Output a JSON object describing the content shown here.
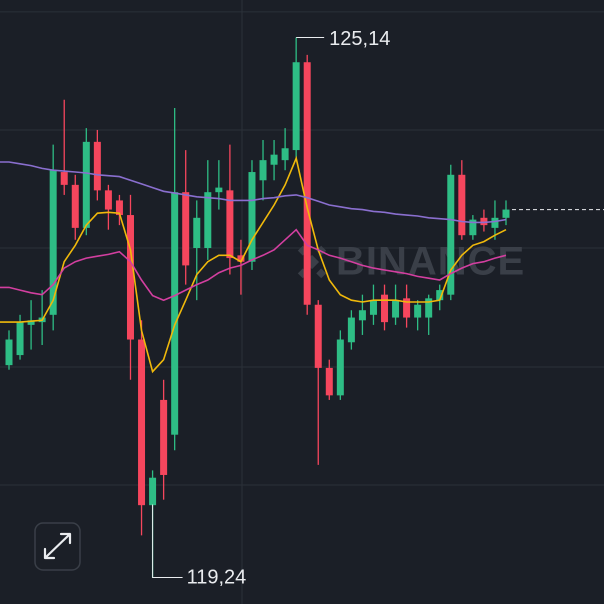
{
  "chart_data": {
    "type": "candlestick",
    "ylim": [
      118.95,
      125.55
    ],
    "grid_y": [
      125.42,
      124.13,
      122.84,
      121.54,
      120.25
    ],
    "up_color": "#2ebd85",
    "down_color": "#f6465d",
    "watermark": "BINANCE",
    "open": [
      121.56,
      121.67,
      122.0,
      122.03,
      122.11,
      123.67,
      123.53,
      123.06,
      124.0,
      123.47,
      123.36,
      123.2,
      121.84,
      120.03,
      121.18,
      120.8,
      123.45,
      122.84,
      122.84,
      123.45,
      123.47,
      122.76,
      122.69,
      123.58,
      123.75,
      123.8,
      123.91,
      124.87,
      122.22,
      121.53,
      121.23,
      121.81,
      122.05,
      122.11,
      122.33,
      122.08,
      122.29,
      122.08,
      122.08,
      122.27,
      122.33,
      123.64,
      122.98,
      123.17,
      123.06,
      123.17
    ],
    "high": [
      121.94,
      122.11,
      122.27,
      122.38,
      123.97,
      124.46,
      123.64,
      124.15,
      124.13,
      123.53,
      123.42,
      123.42,
      122.05,
      120.41,
      121.4,
      124.37,
      123.91,
      123.36,
      123.8,
      123.8,
      123.97,
      122.93,
      123.8,
      124.02,
      124.02,
      124.15,
      125.14,
      124.95,
      122.27,
      121.62,
      121.94,
      122.16,
      122.33,
      122.44,
      122.44,
      122.44,
      122.44,
      122.27,
      122.33,
      122.44,
      123.75,
      123.8,
      123.2,
      123.26,
      123.36,
      123.36
    ],
    "low": [
      121.51,
      121.62,
      121.73,
      121.78,
      121.94,
      123.42,
      122.93,
      122.98,
      123.36,
      123.04,
      123.09,
      121.4,
      119.7,
      119.24,
      120.09,
      120.63,
      122.44,
      122.27,
      122.71,
      123.26,
      122.55,
      122.33,
      122.6,
      123.36,
      123.58,
      123.69,
      123.8,
      122.11,
      120.47,
      121.18,
      121.18,
      121.73,
      121.89,
      122.0,
      121.94,
      122.0,
      121.97,
      121.94,
      121.89,
      122.16,
      122.27,
      122.93,
      122.93,
      123.02,
      122.93,
      123.09
    ],
    "close": [
      121.84,
      122.03,
      122.05,
      122.08,
      123.69,
      123.53,
      123.06,
      124.0,
      123.47,
      123.26,
      123.2,
      121.84,
      120.03,
      120.33,
      120.36,
      123.45,
      122.65,
      123.17,
      123.45,
      123.5,
      122.73,
      122.69,
      123.67,
      123.8,
      123.86,
      123.93,
      124.87,
      122.22,
      121.53,
      121.23,
      121.84,
      122.08,
      122.16,
      122.27,
      122.03,
      122.27,
      122.08,
      122.22,
      122.29,
      122.38,
      123.64,
      122.98,
      123.15,
      123.09,
      123.17,
      123.26
    ],
    "series": [
      {
        "color": "#f0b90b",
        "values": [
          122.03,
          122.03,
          122.04,
          122.05,
          122.27,
          122.69,
          122.87,
          123.09,
          123.22,
          123.23,
          123.22,
          122.82,
          121.94,
          121.49,
          121.62,
          122.0,
          122.27,
          122.55,
          122.69,
          122.76,
          122.76,
          122.69,
          122.93,
          123.12,
          123.31,
          123.53,
          123.82,
          123.28,
          122.82,
          122.49,
          122.33,
          122.27,
          122.25,
          122.27,
          122.27,
          122.27,
          122.25,
          122.25,
          122.25,
          122.27,
          122.6,
          122.76,
          122.87,
          122.91,
          122.98,
          123.04
        ]
      },
      {
        "color": "#d33fa0",
        "values": [
          122.41,
          122.38,
          122.35,
          122.33,
          122.44,
          122.62,
          122.69,
          122.73,
          122.75,
          122.77,
          122.8,
          122.69,
          122.49,
          122.32,
          122.27,
          122.32,
          122.38,
          122.44,
          122.49,
          122.57,
          122.62,
          122.65,
          122.71,
          122.76,
          122.82,
          122.93,
          123.04,
          122.87,
          122.82,
          122.76,
          122.73,
          122.69,
          122.65,
          122.62,
          122.6,
          122.58,
          122.56,
          122.53,
          122.51,
          122.49,
          122.56,
          122.62,
          122.67,
          122.69,
          122.73,
          122.76
        ]
      },
      {
        "color": "#8a6fcf",
        "values": [
          123.78,
          123.76,
          123.74,
          123.71,
          123.69,
          123.68,
          123.67,
          123.66,
          123.64,
          123.63,
          123.62,
          123.58,
          123.54,
          123.5,
          123.46,
          123.44,
          123.42,
          123.4,
          123.39,
          123.38,
          123.36,
          123.36,
          123.36,
          123.38,
          123.39,
          123.41,
          123.42,
          123.39,
          123.35,
          123.31,
          123.29,
          123.27,
          123.26,
          123.24,
          123.23,
          123.21,
          123.2,
          123.19,
          123.17,
          123.16,
          123.15,
          123.13,
          123.12,
          123.12,
          123.13,
          123.15
        ]
      }
    ],
    "annotations": [
      {
        "value": 125.14,
        "label": "125,14"
      },
      {
        "value": 119.24,
        "label": "119,24"
      }
    ]
  }
}
